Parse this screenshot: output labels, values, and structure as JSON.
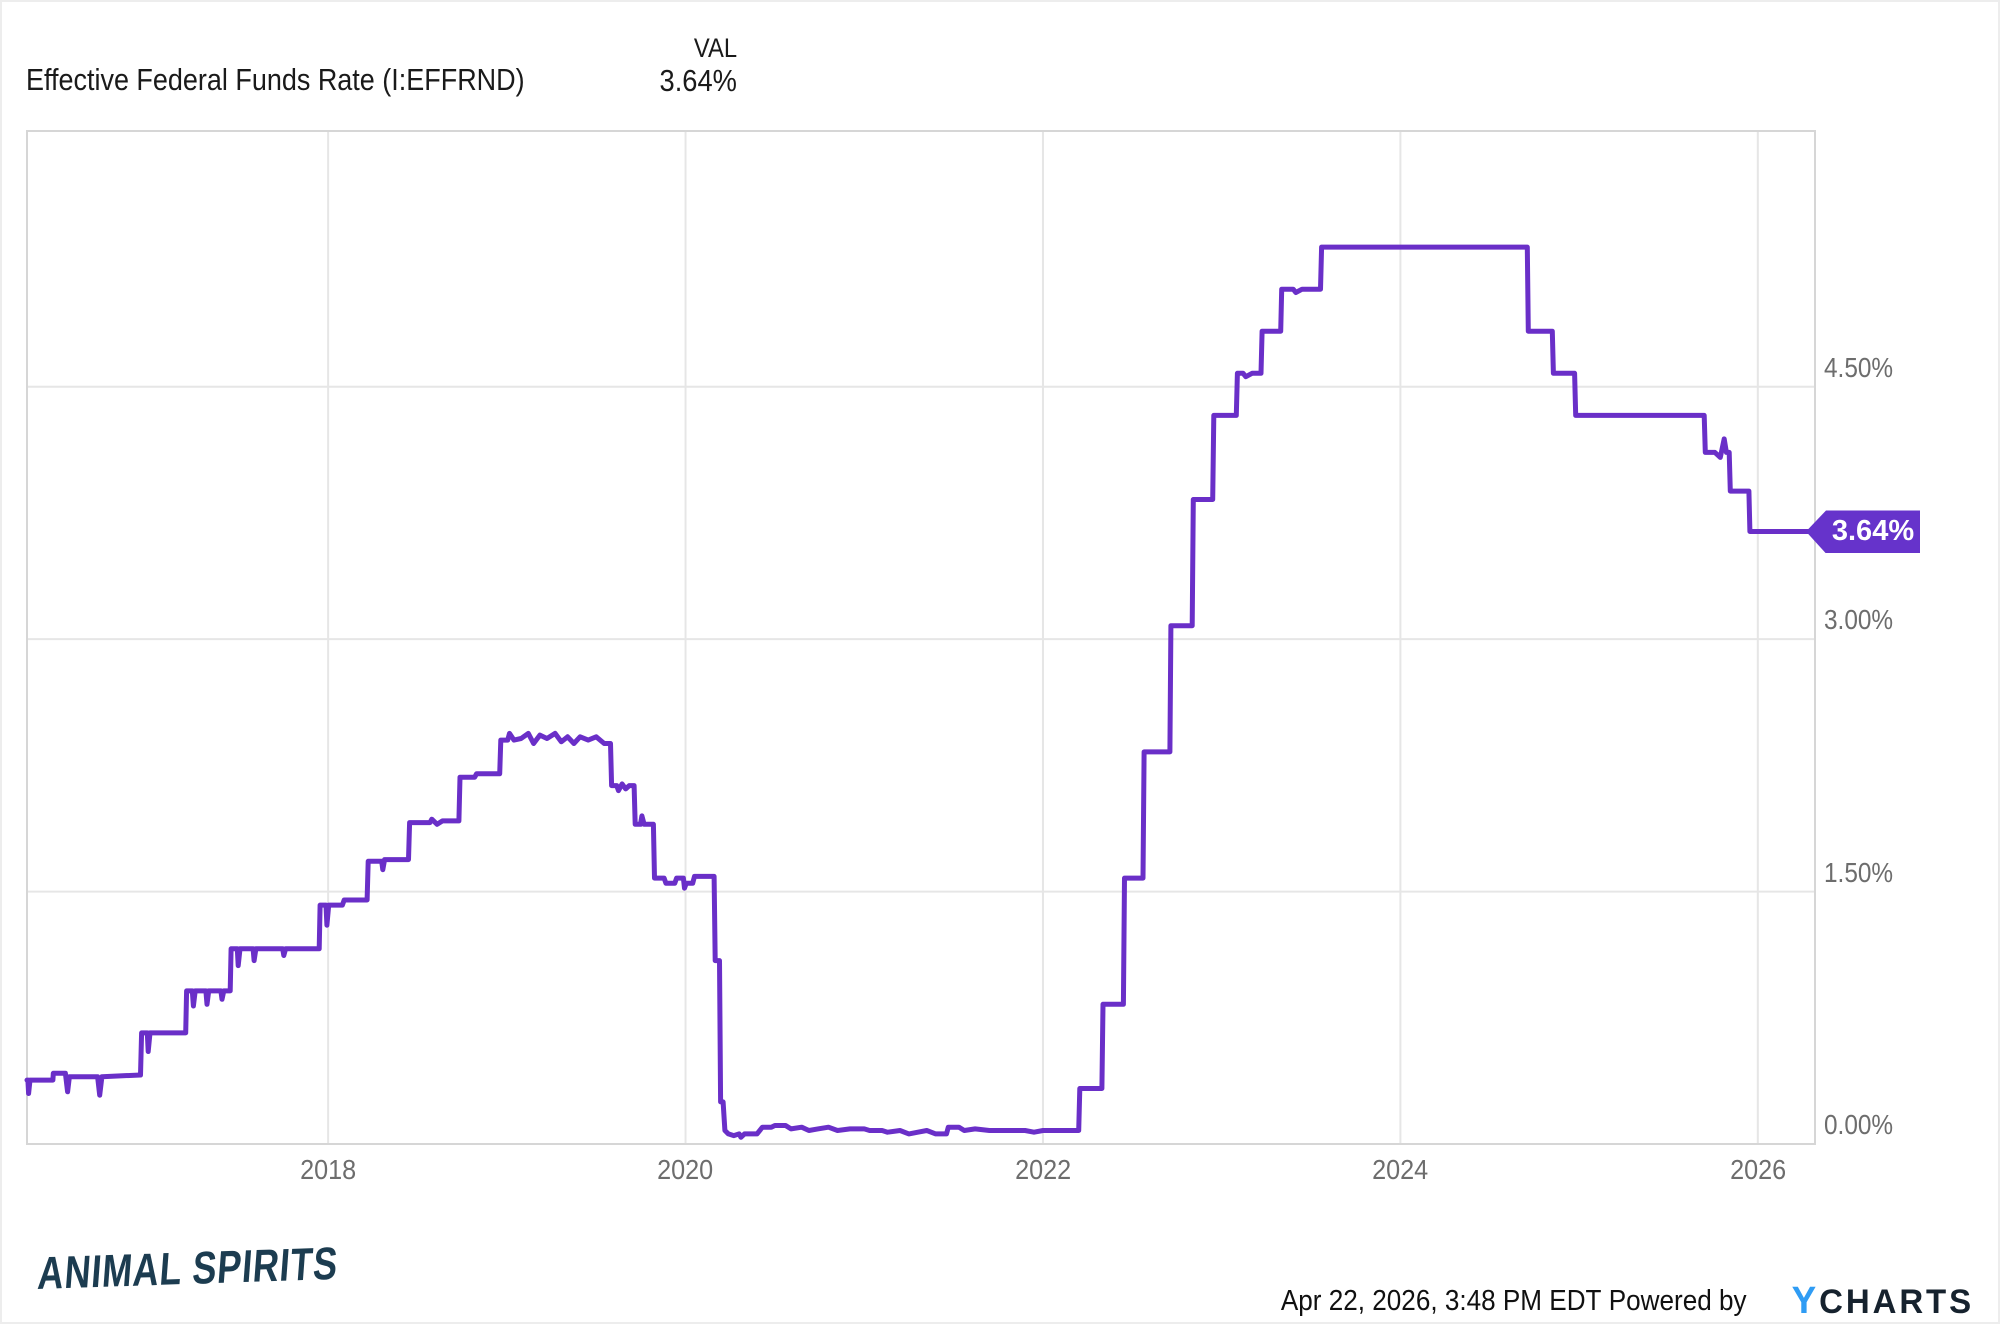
{
  "header": {
    "title": "Effective Federal Funds Rate (I:EFFRND)",
    "val_label": "VAL",
    "val_value": "3.64%"
  },
  "badge": {
    "label": "3.64%"
  },
  "footer": {
    "brand": "ANIMAL SPIRITS",
    "timestamp": "Apr 22, 2026, 3:48 PM EDT",
    "powered_by": "Powered by",
    "logo_y": "Y",
    "logo_charts": "CHARTS"
  },
  "colors": {
    "line": "#6A2FC8",
    "badge": "#6633CB",
    "grid": "#e6e6e6",
    "plot_border": "#d6d6d6",
    "tick": "#6d6d6d",
    "title": "#1a1a1a",
    "brand": "#1c3c50",
    "logo_blue": "#2f9cf4",
    "logo_dark": "#16222e"
  },
  "chart_data": {
    "type": "line",
    "title": "Effective Federal Funds Rate (I:EFFRND)",
    "series_name": "Effective Federal Funds Rate",
    "unit": "%",
    "grid": true,
    "legend_position": "none",
    "x_range": [
      2016.315,
      2026.32
    ],
    "y_range": [
      0,
      6.02
    ],
    "x_ticks": [
      {
        "value": 2018,
        "label": "2018"
      },
      {
        "value": 2020,
        "label": "2020"
      },
      {
        "value": 2022,
        "label": "2022"
      },
      {
        "value": 2024,
        "label": "2024"
      },
      {
        "value": 2026,
        "label": "2026"
      }
    ],
    "y_ticks": [
      {
        "value": 0.0,
        "label": "0.00%"
      },
      {
        "value": 1.5,
        "label": "1.50%"
      },
      {
        "value": 3.0,
        "label": "3.00%"
      },
      {
        "value": 4.5,
        "label": "4.50%"
      }
    ],
    "last_value": 3.64,
    "last_value_label": "3.64%",
    "points": [
      [
        2016.315,
        0.38
      ],
      [
        2016.32,
        0.38
      ],
      [
        2016.324,
        0.3
      ],
      [
        2016.332,
        0.38
      ],
      [
        2016.46,
        0.38
      ],
      [
        2016.462,
        0.42
      ],
      [
        2016.53,
        0.42
      ],
      [
        2016.542,
        0.31
      ],
      [
        2016.552,
        0.4
      ],
      [
        2016.71,
        0.4
      ],
      [
        2016.722,
        0.29
      ],
      [
        2016.734,
        0.4
      ],
      [
        2016.95,
        0.41
      ],
      [
        2016.956,
        0.66
      ],
      [
        2016.988,
        0.66
      ],
      [
        2016.993,
        0.55
      ],
      [
        2017.003,
        0.66
      ],
      [
        2017.203,
        0.66
      ],
      [
        2017.208,
        0.91
      ],
      [
        2017.24,
        0.91
      ],
      [
        2017.246,
        0.82
      ],
      [
        2017.256,
        0.91
      ],
      [
        2017.316,
        0.91
      ],
      [
        2017.322,
        0.83
      ],
      [
        2017.332,
        0.91
      ],
      [
        2017.4,
        0.91
      ],
      [
        2017.406,
        0.86
      ],
      [
        2017.416,
        0.91
      ],
      [
        2017.452,
        0.91
      ],
      [
        2017.457,
        1.16
      ],
      [
        2017.492,
        1.16
      ],
      [
        2017.497,
        1.06
      ],
      [
        2017.507,
        1.16
      ],
      [
        2017.58,
        1.16
      ],
      [
        2017.586,
        1.09
      ],
      [
        2017.596,
        1.16
      ],
      [
        2017.746,
        1.16
      ],
      [
        2017.752,
        1.12
      ],
      [
        2017.762,
        1.16
      ],
      [
        2017.95,
        1.16
      ],
      [
        2017.955,
        1.42
      ],
      [
        2017.988,
        1.42
      ],
      [
        2017.993,
        1.3
      ],
      [
        2018.003,
        1.42
      ],
      [
        2018.08,
        1.42
      ],
      [
        2018.09,
        1.45
      ],
      [
        2018.218,
        1.45
      ],
      [
        2018.224,
        1.68
      ],
      [
        2018.3,
        1.68
      ],
      [
        2018.306,
        1.63
      ],
      [
        2018.316,
        1.69
      ],
      [
        2018.45,
        1.69
      ],
      [
        2018.456,
        1.91
      ],
      [
        2018.57,
        1.91
      ],
      [
        2018.58,
        1.93
      ],
      [
        2018.61,
        1.9
      ],
      [
        2018.64,
        1.92
      ],
      [
        2018.732,
        1.92
      ],
      [
        2018.738,
        2.18
      ],
      [
        2018.82,
        2.18
      ],
      [
        2018.83,
        2.2
      ],
      [
        2018.96,
        2.2
      ],
      [
        2018.966,
        2.4
      ],
      [
        2019.005,
        2.4
      ],
      [
        2019.015,
        2.44
      ],
      [
        2019.04,
        2.4
      ],
      [
        2019.08,
        2.41
      ],
      [
        2019.12,
        2.44
      ],
      [
        2019.15,
        2.38
      ],
      [
        2019.185,
        2.43
      ],
      [
        2019.225,
        2.41
      ],
      [
        2019.27,
        2.44
      ],
      [
        2019.305,
        2.39
      ],
      [
        2019.34,
        2.42
      ],
      [
        2019.375,
        2.38
      ],
      [
        2019.41,
        2.42
      ],
      [
        2019.455,
        2.4
      ],
      [
        2019.5,
        2.42
      ],
      [
        2019.545,
        2.38
      ],
      [
        2019.58,
        2.38
      ],
      [
        2019.586,
        2.13
      ],
      [
        2019.615,
        2.13
      ],
      [
        2019.625,
        2.1
      ],
      [
        2019.645,
        2.14
      ],
      [
        2019.665,
        2.11
      ],
      [
        2019.685,
        2.13
      ],
      [
        2019.712,
        2.13
      ],
      [
        2019.718,
        1.9
      ],
      [
        2019.748,
        1.9
      ],
      [
        2019.756,
        1.95
      ],
      [
        2019.768,
        1.9
      ],
      [
        2019.82,
        1.9
      ],
      [
        2019.826,
        1.58
      ],
      [
        2019.88,
        1.58
      ],
      [
        2019.89,
        1.55
      ],
      [
        2019.94,
        1.55
      ],
      [
        2019.95,
        1.58
      ],
      [
        2019.988,
        1.58
      ],
      [
        2019.994,
        1.52
      ],
      [
        2020.004,
        1.55
      ],
      [
        2020.04,
        1.55
      ],
      [
        2020.05,
        1.59
      ],
      [
        2020.16,
        1.59
      ],
      [
        2020.166,
        1.09
      ],
      [
        2020.19,
        1.09
      ],
      [
        2020.196,
        0.25
      ],
      [
        2020.21,
        0.25
      ],
      [
        2020.22,
        0.08
      ],
      [
        2020.24,
        0.06
      ],
      [
        2020.27,
        0.05
      ],
      [
        2020.3,
        0.06
      ],
      [
        2020.31,
        0.04
      ],
      [
        2020.33,
        0.06
      ],
      [
        2020.4,
        0.06
      ],
      [
        2020.43,
        0.1
      ],
      [
        2020.48,
        0.1
      ],
      [
        2020.5,
        0.11
      ],
      [
        2020.56,
        0.11
      ],
      [
        2020.59,
        0.09
      ],
      [
        2020.65,
        0.1
      ],
      [
        2020.69,
        0.08
      ],
      [
        2020.74,
        0.09
      ],
      [
        2020.8,
        0.1
      ],
      [
        2020.85,
        0.08
      ],
      [
        2020.92,
        0.09
      ],
      [
        2021.0,
        0.09
      ],
      [
        2021.03,
        0.08
      ],
      [
        2021.1,
        0.08
      ],
      [
        2021.13,
        0.07
      ],
      [
        2021.2,
        0.08
      ],
      [
        2021.25,
        0.06
      ],
      [
        2021.3,
        0.07
      ],
      [
        2021.35,
        0.08
      ],
      [
        2021.4,
        0.06
      ],
      [
        2021.44,
        0.06
      ],
      [
        2021.46,
        0.06
      ],
      [
        2021.47,
        0.1
      ],
      [
        2021.53,
        0.1
      ],
      [
        2021.56,
        0.08
      ],
      [
        2021.62,
        0.09
      ],
      [
        2021.7,
        0.08
      ],
      [
        2021.8,
        0.08
      ],
      [
        2021.9,
        0.08
      ],
      [
        2021.95,
        0.07
      ],
      [
        2022.0,
        0.08
      ],
      [
        2022.12,
        0.08
      ],
      [
        2022.2,
        0.08
      ],
      [
        2022.206,
        0.33
      ],
      [
        2022.33,
        0.33
      ],
      [
        2022.336,
        0.83
      ],
      [
        2022.45,
        0.83
      ],
      [
        2022.456,
        1.58
      ],
      [
        2022.56,
        1.58
      ],
      [
        2022.566,
        2.33
      ],
      [
        2022.71,
        2.33
      ],
      [
        2022.716,
        3.08
      ],
      [
        2022.835,
        3.08
      ],
      [
        2022.841,
        3.83
      ],
      [
        2022.95,
        3.83
      ],
      [
        2022.956,
        4.33
      ],
      [
        2023.082,
        4.33
      ],
      [
        2023.088,
        4.58
      ],
      [
        2023.12,
        4.58
      ],
      [
        2023.135,
        4.56
      ],
      [
        2023.17,
        4.58
      ],
      [
        2023.22,
        4.58
      ],
      [
        2023.226,
        4.83
      ],
      [
        2023.33,
        4.83
      ],
      [
        2023.336,
        5.08
      ],
      [
        2023.4,
        5.08
      ],
      [
        2023.415,
        5.06
      ],
      [
        2023.45,
        5.08
      ],
      [
        2023.553,
        5.08
      ],
      [
        2023.559,
        5.33
      ],
      [
        2024.71,
        5.33
      ],
      [
        2024.716,
        4.83
      ],
      [
        2024.85,
        4.83
      ],
      [
        2024.856,
        4.58
      ],
      [
        2024.975,
        4.58
      ],
      [
        2024.981,
        4.33
      ],
      [
        2025.7,
        4.33
      ],
      [
        2025.706,
        4.11
      ],
      [
        2025.76,
        4.11
      ],
      [
        2025.79,
        4.08
      ],
      [
        2025.812,
        4.19
      ],
      [
        2025.824,
        4.11
      ],
      [
        2025.84,
        4.11
      ],
      [
        2025.846,
        3.88
      ],
      [
        2025.95,
        3.88
      ],
      [
        2025.956,
        3.64
      ],
      [
        2026.32,
        3.64
      ]
    ]
  }
}
